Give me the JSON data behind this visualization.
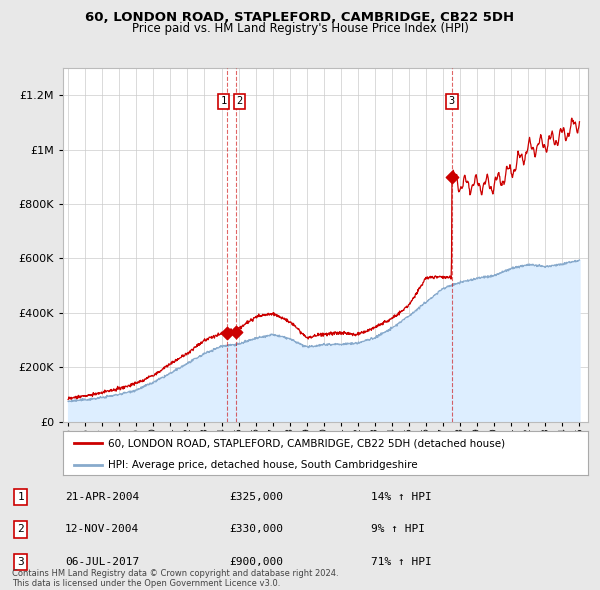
{
  "title": "60, LONDON ROAD, STAPLEFORD, CAMBRIDGE, CB22 5DH",
  "subtitle": "Price paid vs. HM Land Registry's House Price Index (HPI)",
  "sale_dates_num": [
    2004.31,
    2004.87,
    2017.51
  ],
  "sale_prices": [
    325000,
    330000,
    900000
  ],
  "sale_labels": [
    "1",
    "2",
    "3"
  ],
  "legend_house": "60, LONDON ROAD, STAPLEFORD, CAMBRIDGE, CB22 5DH (detached house)",
  "legend_hpi": "HPI: Average price, detached house, South Cambridgeshire",
  "table_rows": [
    {
      "num": "1",
      "date": "21-APR-2004",
      "price": "£325,000",
      "pct": "14% ↑ HPI"
    },
    {
      "num": "2",
      "date": "12-NOV-2004",
      "price": "£330,000",
      "pct": "9% ↑ HPI"
    },
    {
      "num": "3",
      "date": "06-JUL-2017",
      "price": "£900,000",
      "pct": "71% ↑ HPI"
    }
  ],
  "footer": "Contains HM Land Registry data © Crown copyright and database right 2024.\nThis data is licensed under the Open Government Licence v3.0.",
  "house_color": "#cc0000",
  "hpi_color": "#88aacc",
  "hpi_fill_color": "#ddeeff",
  "background_color": "#e8e8e8",
  "plot_bg_color": "#ffffff",
  "ylim_max": 1300000,
  "xmin": 1994.7,
  "xmax": 2025.5,
  "hpi_anchors_t": [
    1995,
    1996,
    1997,
    1998,
    1999,
    2000,
    2001,
    2002,
    2003,
    2004,
    2005,
    2006,
    2007,
    2008,
    2009,
    2010,
    2011,
    2012,
    2013,
    2014,
    2015,
    2016,
    2017,
    2018,
    2019,
    2020,
    2021,
    2022,
    2023,
    2024,
    2025
  ],
  "hpi_anchors_v": [
    75000,
    82000,
    90000,
    102000,
    118000,
    145000,
    178000,
    215000,
    250000,
    278000,
    285000,
    305000,
    320000,
    305000,
    275000,
    285000,
    285000,
    290000,
    310000,
    345000,
    390000,
    440000,
    490000,
    510000,
    525000,
    535000,
    560000,
    575000,
    565000,
    575000,
    590000
  ],
  "house_anchors_t": [
    1995,
    1996,
    1997,
    1998,
    1999,
    2000,
    2001,
    2002,
    2003,
    2004.31,
    2004.87,
    2005,
    2006,
    2007,
    2008,
    2009,
    2010,
    2011,
    2012,
    2013,
    2014,
    2015,
    2016,
    2017.49,
    2017.51,
    2018,
    2019,
    2020,
    2021,
    2022,
    2023,
    2024,
    2025
  ],
  "house_anchors_v": [
    85000,
    95000,
    105000,
    120000,
    140000,
    170000,
    210000,
    250000,
    295000,
    325000,
    330000,
    340000,
    380000,
    395000,
    365000,
    305000,
    320000,
    325000,
    320000,
    345000,
    380000,
    430000,
    530000,
    530000,
    900000,
    870000,
    870000,
    870000,
    920000,
    1000000,
    1020000,
    1050000,
    1100000
  ]
}
